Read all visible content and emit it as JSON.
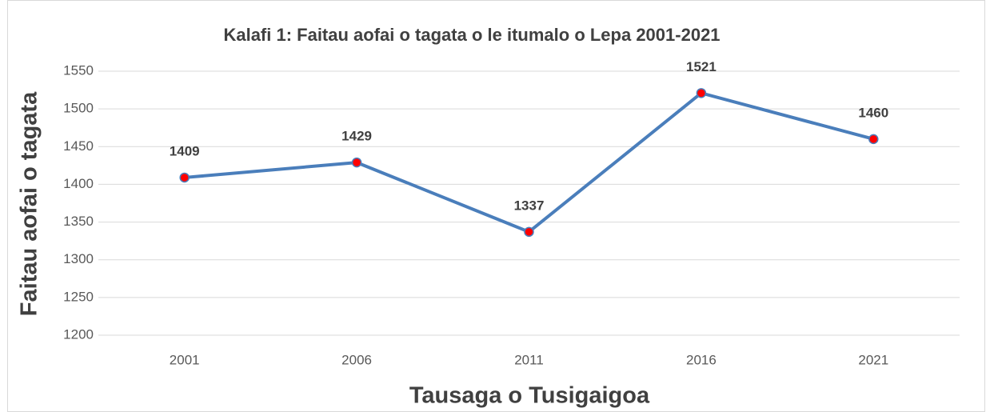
{
  "chart_data": {
    "type": "line",
    "title": "Kalafi 1: Faitau aofai o tagata o le itumalo o Lepa 2001-2021",
    "x_label": "Tausaga o Tusigaigoa",
    "y_label": "Faitau aofai o tagata",
    "categories": [
      "2001",
      "2006",
      "2011",
      "2016",
      "2021"
    ],
    "series": [
      {
        "name": "Faitau aofai o tagata",
        "color": "#4a7ebb",
        "marker_color": "#ff0000",
        "values": [
          1409,
          1429,
          1337,
          1521,
          1460
        ]
      }
    ],
    "ylim": [
      1200,
      1550
    ],
    "yticks": [
      1200,
      1250,
      1300,
      1350,
      1400,
      1450,
      1500,
      1550
    ],
    "grid": true
  }
}
